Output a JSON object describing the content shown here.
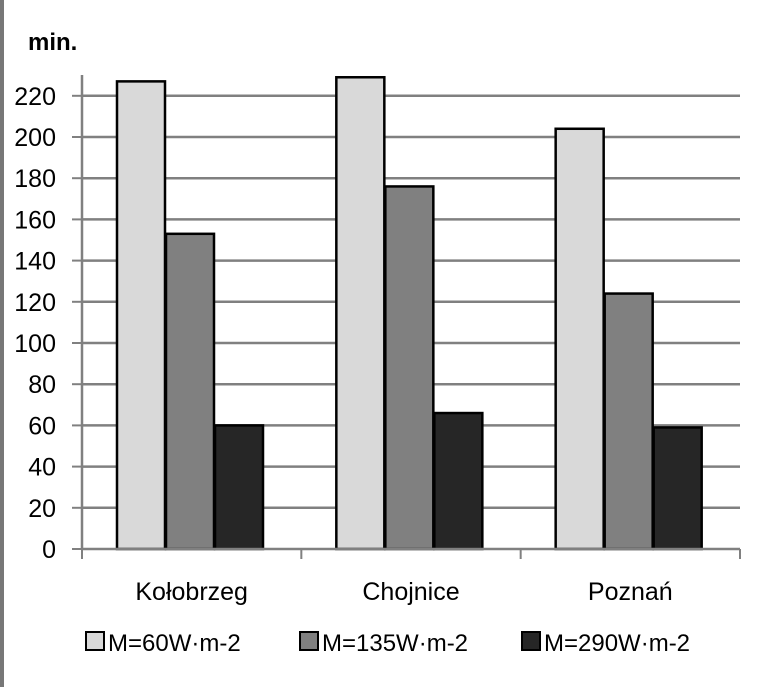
{
  "chart_data": {
    "type": "bar",
    "ylabel": "min.",
    "categories": [
      "Kołobrzeg",
      "Chojnice",
      "Poznań"
    ],
    "series": [
      {
        "name": "M=60W·m-2",
        "values": [
          227,
          229,
          204
        ],
        "color": "#d9d9d9"
      },
      {
        "name": "M=135W·m-2",
        "values": [
          153,
          176,
          124
        ],
        "color": "#808080"
      },
      {
        "name": "M=290W·m-2",
        "values": [
          60,
          66,
          59
        ],
        "color": "#262626"
      }
    ],
    "ylim": [
      0,
      230
    ],
    "yticks": [
      0,
      20,
      40,
      60,
      80,
      100,
      120,
      140,
      160,
      180,
      200,
      220
    ],
    "grid": true,
    "legend": "bottom"
  }
}
